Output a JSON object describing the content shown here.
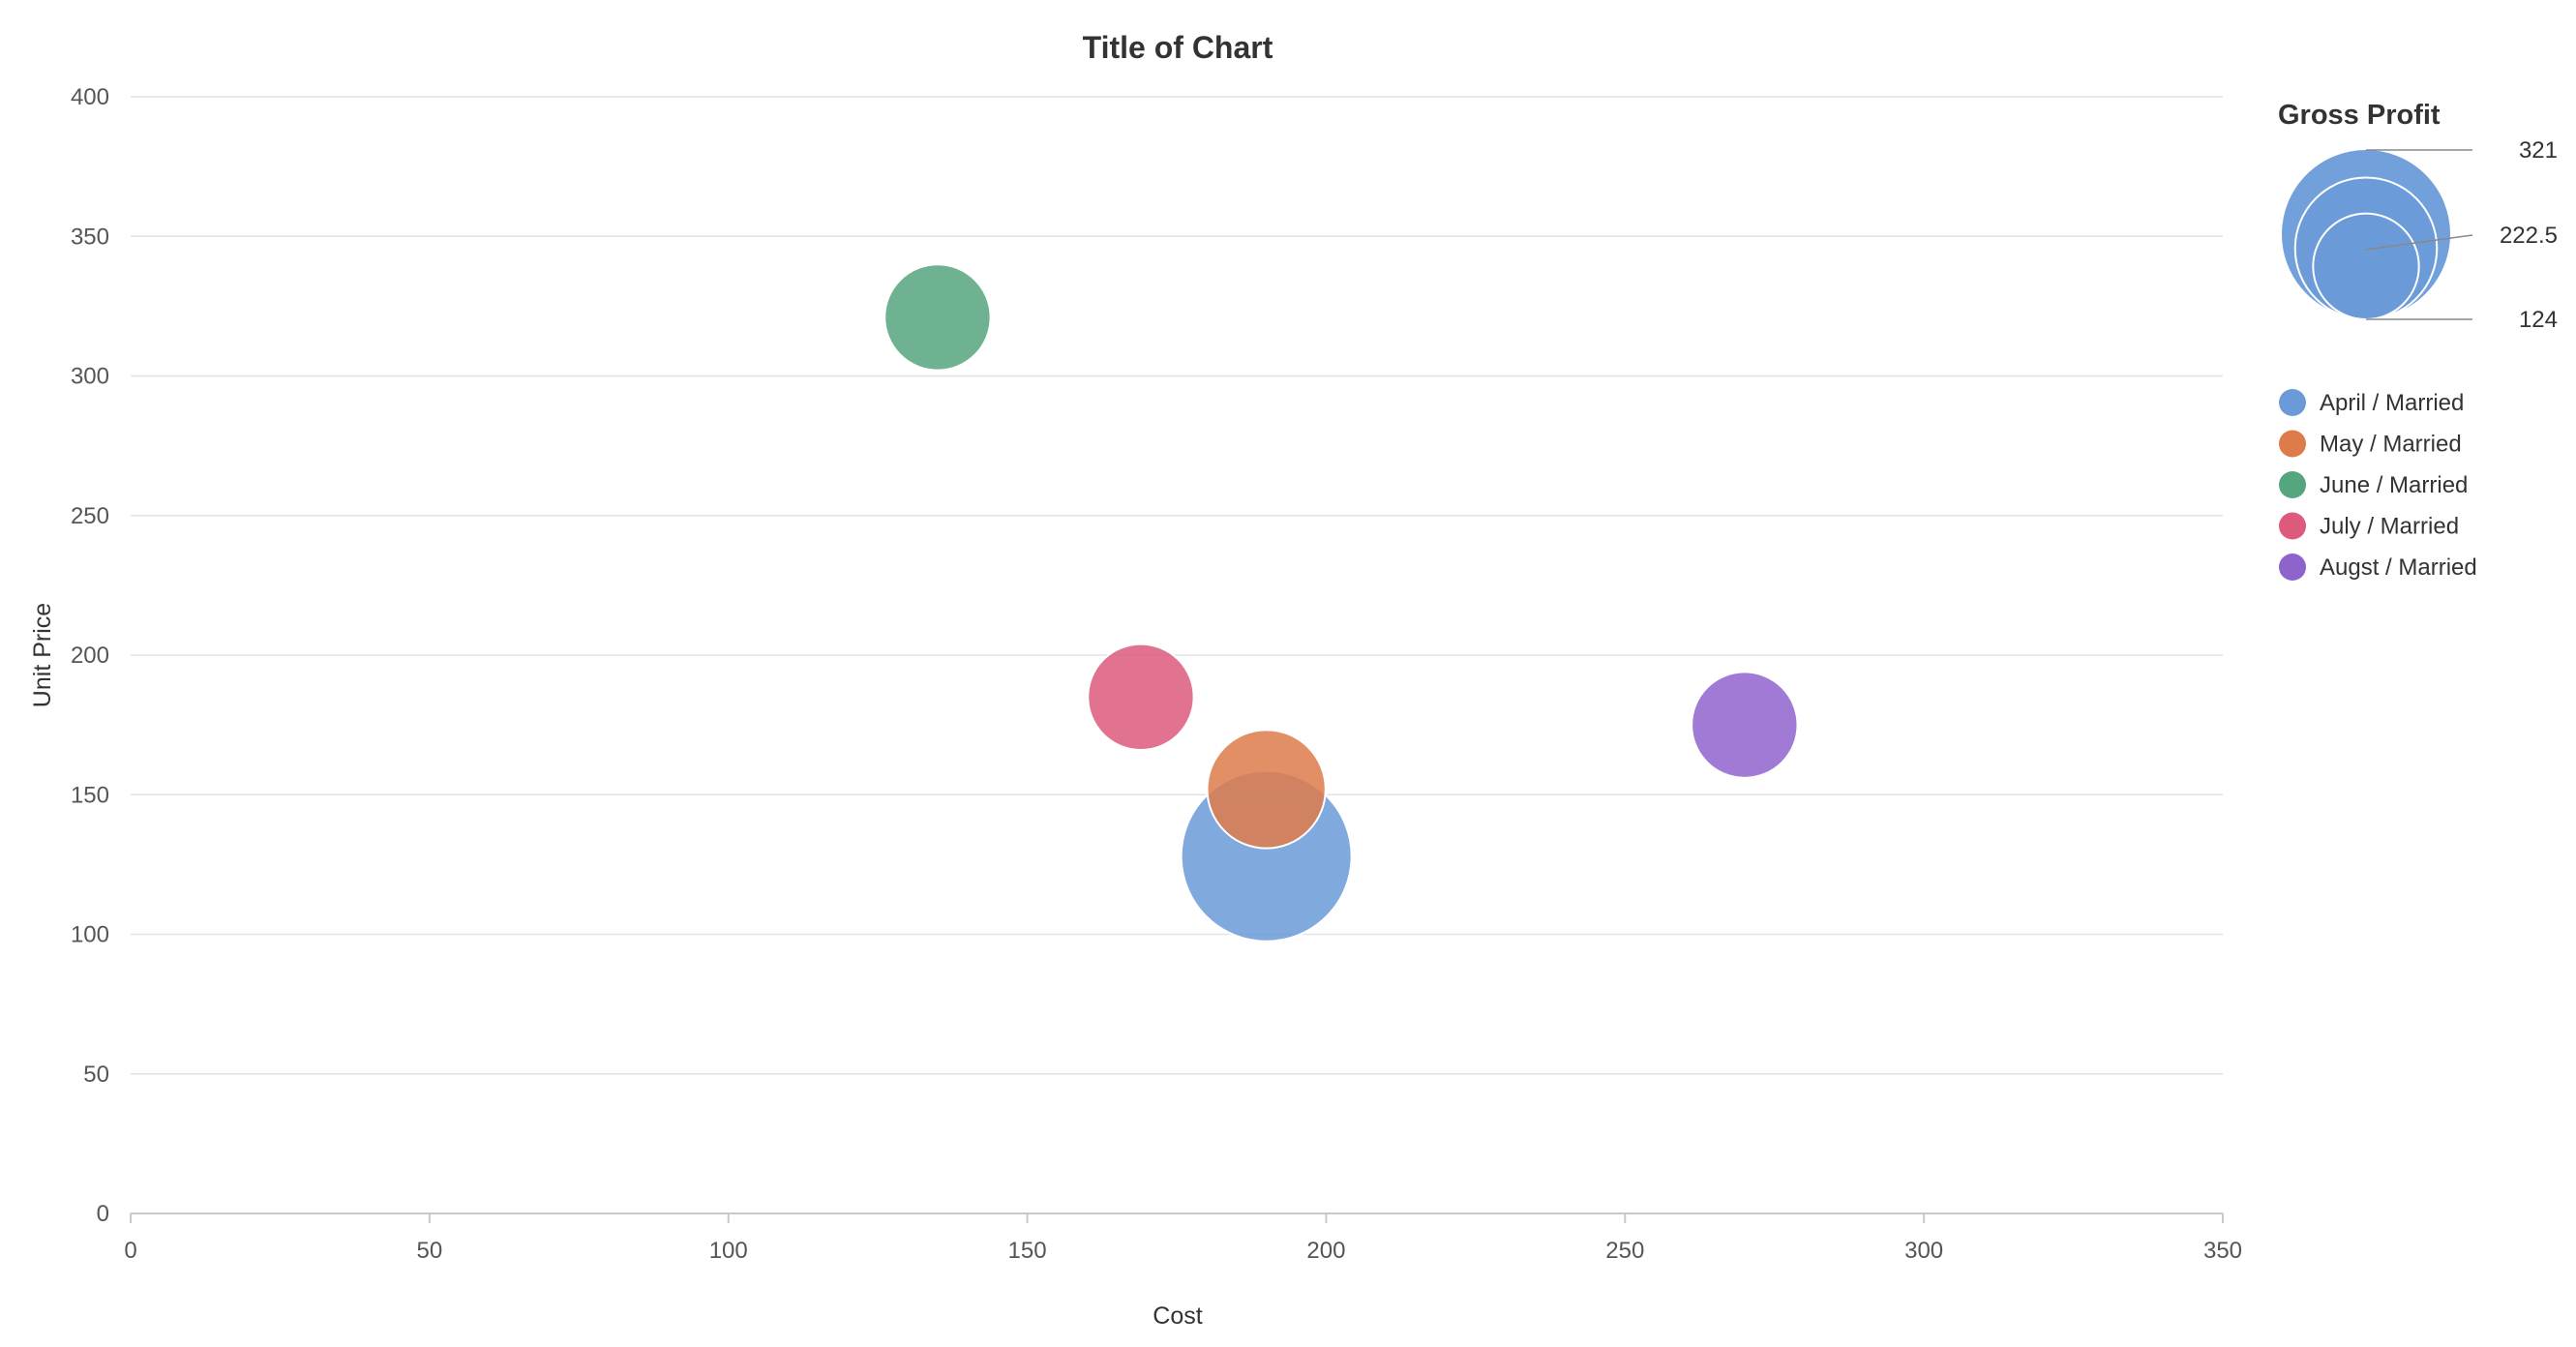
{
  "chart_data": {
    "type": "bubble",
    "title": "Title of Chart",
    "xlabel": "Cost",
    "ylabel": "Unit Price",
    "xlim": [
      0,
      350
    ],
    "ylim": [
      0,
      400
    ],
    "xticks": [
      0,
      50,
      100,
      150,
      200,
      250,
      300,
      350
    ],
    "yticks": [
      0,
      50,
      100,
      150,
      200,
      250,
      300,
      350,
      400
    ],
    "grid": "horizontal",
    "size_legend": {
      "title": "Gross Profit",
      "values": [
        321,
        222.5,
        124
      ],
      "labels": [
        "321",
        "222.5",
        "124"
      ]
    },
    "legend_position": "right",
    "series": [
      {
        "name": "April / Married",
        "color": "#6a9bd8",
        "x": 190,
        "y": 128,
        "size": 321
      },
      {
        "name": "May / Married",
        "color": "#de7b4b",
        "x": 190,
        "y": 152,
        "size": 155
      },
      {
        "name": "June / Married",
        "color": "#55a57f",
        "x": 135,
        "y": 321,
        "size": 124
      },
      {
        "name": "July / Married",
        "color": "#dd5a7d",
        "x": 169,
        "y": 185,
        "size": 124
      },
      {
        "name": "Augst / Married",
        "color": "#8f63cc",
        "x": 270,
        "y": 175,
        "size": 124
      }
    ]
  }
}
